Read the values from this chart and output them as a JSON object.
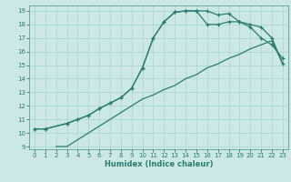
{
  "title": "",
  "xlabel": "Humidex (Indice chaleur)",
  "bg_color": "#cce8e4",
  "grid_color": "#a8d4ce",
  "line_color": "#2a7d6e",
  "spine_color": "#5a9e90",
  "xlim": [
    -0.5,
    23.5
  ],
  "ylim": [
    8.8,
    19.4
  ],
  "xticks": [
    0,
    1,
    2,
    3,
    4,
    5,
    6,
    7,
    8,
    9,
    10,
    11,
    12,
    13,
    14,
    15,
    16,
    17,
    18,
    19,
    20,
    21,
    22,
    23
  ],
  "yticks": [
    9,
    10,
    11,
    12,
    13,
    14,
    15,
    16,
    17,
    18,
    19
  ],
  "line1_x": [
    0,
    1,
    3,
    4,
    5,
    6,
    7,
    8,
    9,
    10,
    11,
    12,
    13,
    14,
    15,
    16,
    17,
    18,
    19,
    20,
    21,
    22,
    23
  ],
  "line1_y": [
    10.3,
    10.3,
    10.7,
    11.0,
    11.3,
    11.8,
    12.2,
    12.6,
    13.3,
    14.8,
    17.0,
    18.2,
    18.9,
    19.0,
    19.0,
    19.0,
    18.7,
    18.8,
    18.2,
    17.8,
    17.0,
    16.5,
    15.5
  ],
  "line2_x": [
    0,
    1,
    3,
    4,
    5,
    6,
    7,
    8,
    9,
    10,
    11,
    12,
    13,
    14,
    15,
    16,
    17,
    18,
    19,
    20,
    21,
    22,
    23
  ],
  "line2_y": [
    10.3,
    10.3,
    10.7,
    11.0,
    11.3,
    11.8,
    12.2,
    12.6,
    13.3,
    14.8,
    17.0,
    18.2,
    18.9,
    19.0,
    19.0,
    18.0,
    18.0,
    18.2,
    18.2,
    18.0,
    17.8,
    17.0,
    15.1
  ],
  "line3_x": [
    2,
    3,
    4,
    5,
    6,
    7,
    8,
    9,
    10,
    11,
    12,
    13,
    14,
    15,
    16,
    17,
    18,
    19,
    20,
    21,
    22,
    23
  ],
  "line3_y": [
    9.0,
    9.0,
    9.5,
    10.0,
    10.5,
    11.0,
    11.5,
    12.0,
    12.5,
    12.8,
    13.2,
    13.5,
    14.0,
    14.3,
    14.8,
    15.1,
    15.5,
    15.8,
    16.2,
    16.5,
    16.8,
    15.1
  ],
  "tick_labelsize": 5.0,
  "xlabel_fontsize": 6.0
}
